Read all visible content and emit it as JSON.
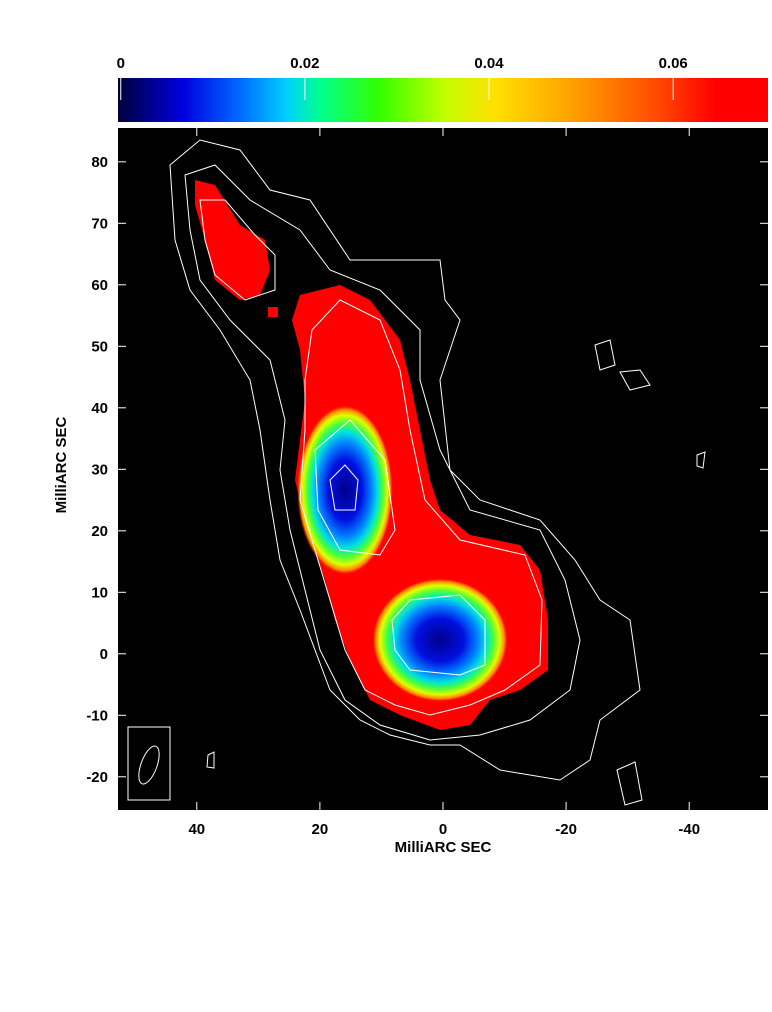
{
  "chart_data": {
    "type": "image",
    "xlabel": "MilliARC SEC",
    "ylabel": "MilliARC SEC",
    "xlim": [
      52.8,
      -52.8
    ],
    "ylim": [
      -25.4,
      85.5
    ],
    "xticks": [
      40,
      20,
      0,
      -20,
      -40
    ],
    "yticks": [
      -20,
      -10,
      0,
      10,
      20,
      30,
      40,
      50,
      60,
      70,
      80
    ],
    "colorbar": {
      "lim": [
        -0.0003,
        0.0703
      ],
      "ticks": [
        0,
        0.02,
        0.04,
        0.06
      ]
    }
  }
}
